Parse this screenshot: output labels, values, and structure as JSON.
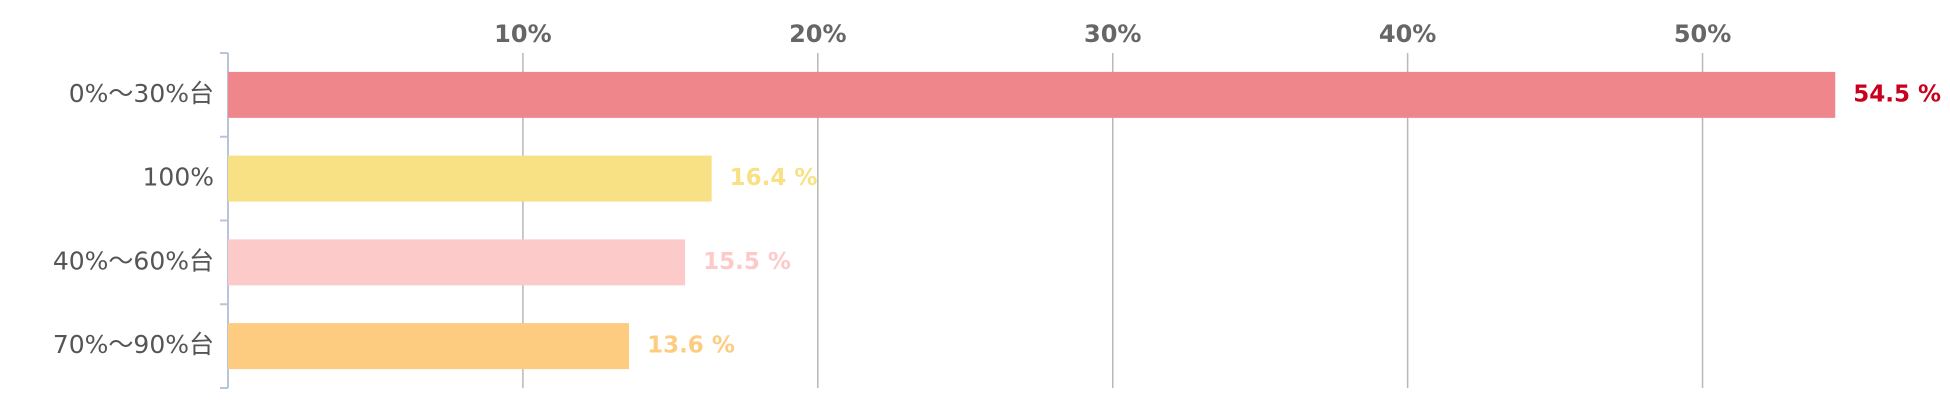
{
  "chart_data": {
    "type": "hbar",
    "categories": [
      "0%〜30%台",
      "100%",
      "40%〜60%台",
      "70%〜90%台"
    ],
    "values": [
      54.5,
      16.4,
      15.5,
      13.6
    ],
    "value_labels": [
      "54.5 %",
      "16.4 %",
      "15.5 %",
      "13.6 %"
    ],
    "colors": [
      "#ee868c",
      "#f8e184",
      "#fdcaca",
      "#fdcc80"
    ],
    "value_label_colors": [
      "#c8001e",
      "#f8e184",
      "#fdcaca",
      "#fdcc80"
    ],
    "xlim": [
      0,
      55
    ],
    "xticks": [
      {
        "value": 10,
        "label": "10%"
      },
      {
        "value": 20,
        "label": "20%"
      },
      {
        "value": 30,
        "label": "30%"
      },
      {
        "value": 40,
        "label": "40%"
      },
      {
        "value": 50,
        "label": "50%"
      }
    ],
    "grid": true
  }
}
